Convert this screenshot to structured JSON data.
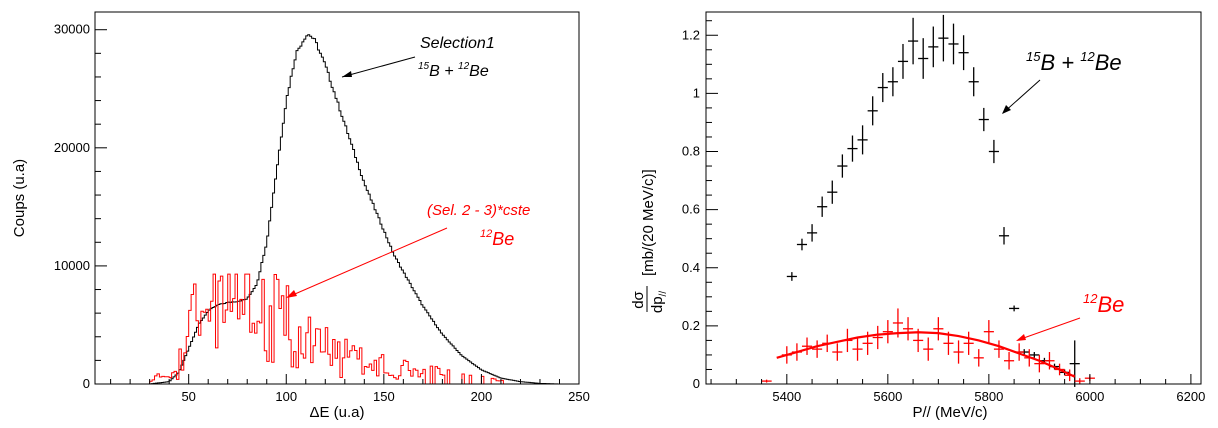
{
  "colors": {
    "black": "#000000",
    "red": "#ff0000"
  },
  "chart_data": [
    {
      "type": "histogram",
      "xlabel": "ΔE (u.a)",
      "ylabel": "Coups (u.a)",
      "xlim": [
        2,
        250
      ],
      "ylim": [
        0,
        31500
      ],
      "xticks": [
        50,
        100,
        150,
        200,
        250
      ],
      "yticks": [
        0,
        10000,
        20000,
        30000
      ],
      "grid": false,
      "annotations": [
        {
          "text": "Selection1",
          "color": "#000000",
          "italic": true
        },
        {
          "text": "15B + 12Be",
          "display": {
            "sup1": "15",
            "mid": "B + ",
            "sup2": "12",
            "end": "Be"
          },
          "color": "#000000"
        },
        {
          "text": "(Sel. 2 - 3)*cste",
          "color": "#ff0000",
          "italic": true
        },
        {
          "text": "12Be",
          "display": {
            "sup": "12",
            "main": "Be"
          },
          "color": "#ff0000"
        }
      ],
      "series": [
        {
          "color": "#000000",
          "x": [
            30,
            40,
            45,
            50,
            55,
            60,
            65,
            70,
            75,
            80,
            85,
            90,
            95,
            100,
            105,
            110,
            112,
            115,
            120,
            125,
            130,
            135,
            140,
            145,
            150,
            155,
            160,
            170,
            180,
            190,
            200,
            210,
            220,
            230,
            240
          ],
          "y": [
            0,
            200,
            1000,
            3000,
            5000,
            6200,
            6700,
            6900,
            7000,
            7200,
            8500,
            12000,
            18000,
            24000,
            28000,
            29500,
            29600,
            29000,
            27000,
            24500,
            22000,
            19500,
            17000,
            15000,
            13000,
            11000,
            9500,
            6600,
            4200,
            2400,
            1200,
            500,
            200,
            50,
            0
          ]
        },
        {
          "color": "#ff0000",
          "x": [
            40,
            45,
            50,
            55,
            60,
            65,
            70,
            75,
            80,
            85,
            90,
            95,
            100,
            105,
            110,
            115,
            120,
            125,
            130,
            135,
            140,
            145,
            150,
            155,
            160,
            165,
            170,
            175,
            180,
            185,
            190,
            200,
            210
          ],
          "y": [
            500,
            1500,
            3500,
            5500,
            7000,
            9000,
            8000,
            7500,
            7200,
            6800,
            6000,
            5500,
            4800,
            4000,
            3500,
            3000,
            2700,
            2500,
            2200,
            2000,
            1800,
            1500,
            1500,
            1300,
            1200,
            1100,
            1000,
            900,
            800,
            700,
            600,
            400,
            200
          ]
        }
      ]
    },
    {
      "type": "scatter",
      "xlabel": "P// (MeV/c)",
      "ylabel": "dσ/dp// [mb/(20 MeV/c)]",
      "ylabel_parts": {
        "num": "dσ",
        "den": "dp",
        "den_sub": "//",
        "unit": "[mb/(20 MeV/c)]"
      },
      "xlim": [
        5240,
        6220
      ],
      "ylim": [
        0,
        1.28
      ],
      "xticks": [
        5400,
        5600,
        5800,
        6000,
        6200
      ],
      "yticks": [
        0,
        0.2,
        0.4,
        0.6,
        0.8,
        1,
        1.2
      ],
      "grid": false,
      "annotations": [
        {
          "text": "15B + 12Be",
          "display": {
            "sup1": "15",
            "mid": "B + ",
            "sup2": "12",
            "end": "Be"
          },
          "color": "#000000"
        },
        {
          "text": "12Be",
          "display": {
            "sup": "12",
            "main": "Be"
          },
          "color": "#ff0000"
        }
      ],
      "series": [
        {
          "color": "#000000",
          "x": [
            5410,
            5430,
            5450,
            5470,
            5490,
            5510,
            5530,
            5550,
            5570,
            5590,
            5610,
            5630,
            5650,
            5670,
            5690,
            5710,
            5730,
            5750,
            5770,
            5790,
            5810,
            5830,
            5850,
            5870,
            5890,
            5910,
            5930,
            5950,
            5970
          ],
          "y": [
            0.37,
            0.48,
            0.52,
            0.61,
            0.66,
            0.75,
            0.81,
            0.84,
            0.94,
            1.02,
            1.04,
            1.11,
            1.18,
            1.12,
            1.16,
            1.19,
            1.17,
            1.14,
            1.04,
            0.91,
            0.8,
            0.51,
            0.26,
            0.11,
            0.1,
            0.08,
            0.06,
            0.04,
            0.07
          ],
          "yerr": [
            0.015,
            0.02,
            0.03,
            0.035,
            0.04,
            0.04,
            0.045,
            0.05,
            0.05,
            0.05,
            0.05,
            0.06,
            0.08,
            0.07,
            0.07,
            0.08,
            0.07,
            0.06,
            0.05,
            0.04,
            0.04,
            0.03,
            0.01,
            0.01,
            0.01,
            0.01,
            0.01,
            0.01,
            0.08
          ]
        },
        {
          "color": "#ff0000",
          "x": [
            5360,
            5400,
            5420,
            5440,
            5460,
            5480,
            5500,
            5520,
            5540,
            5560,
            5580,
            5600,
            5620,
            5640,
            5660,
            5680,
            5700,
            5720,
            5740,
            5760,
            5780,
            5800,
            5820,
            5840,
            5860,
            5880,
            5900,
            5920,
            5940,
            5960,
            5980,
            6000
          ],
          "y": [
            0.01,
            0.1,
            0.11,
            0.13,
            0.12,
            0.14,
            0.11,
            0.15,
            0.12,
            0.14,
            0.16,
            0.18,
            0.21,
            0.19,
            0.15,
            0.12,
            0.19,
            0.14,
            0.11,
            0.14,
            0.09,
            0.18,
            0.12,
            0.08,
            0.11,
            0.09,
            0.07,
            0.08,
            0.05,
            0.03,
            0.01,
            0.02
          ],
          "yerr": [
            0.005,
            0.03,
            0.03,
            0.03,
            0.03,
            0.03,
            0.03,
            0.04,
            0.04,
            0.04,
            0.04,
            0.04,
            0.05,
            0.04,
            0.04,
            0.04,
            0.04,
            0.04,
            0.04,
            0.04,
            0.03,
            0.04,
            0.03,
            0.03,
            0.03,
            0.03,
            0.03,
            0.03,
            0.02,
            0.02,
            0.01,
            0.01
          ]
        }
      ],
      "fit": {
        "color": "#ff0000",
        "x": [
          5380,
          5420,
          5460,
          5500,
          5540,
          5580,
          5620,
          5660,
          5700,
          5740,
          5780,
          5820,
          5860,
          5900,
          5940,
          5970
        ],
        "y": [
          0.09,
          0.11,
          0.13,
          0.145,
          0.16,
          0.17,
          0.175,
          0.178,
          0.175,
          0.165,
          0.15,
          0.13,
          0.105,
          0.08,
          0.05,
          0.025
        ]
      }
    }
  ]
}
